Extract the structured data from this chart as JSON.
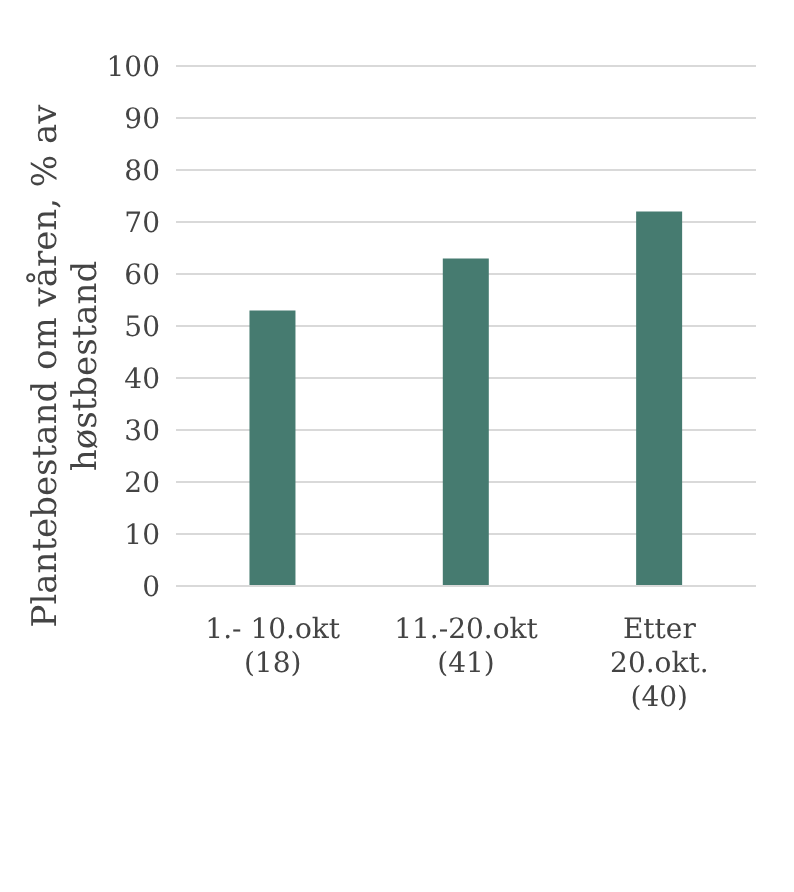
{
  "chart_data": {
    "type": "bar",
    "ylabel": "Plantebestand om våren, % av høstbestand",
    "categories": [
      "1.- 10.okt\n(18)",
      "11.-20.okt\n(41)",
      "Etter\n20.okt.\n(40)"
    ],
    "values": [
      53,
      63,
      72
    ],
    "color": "#467b70",
    "ylim": [
      0,
      100
    ],
    "yticks": [
      0,
      10,
      20,
      30,
      40,
      50,
      60,
      70,
      80,
      90,
      100
    ],
    "grid": "y"
  }
}
